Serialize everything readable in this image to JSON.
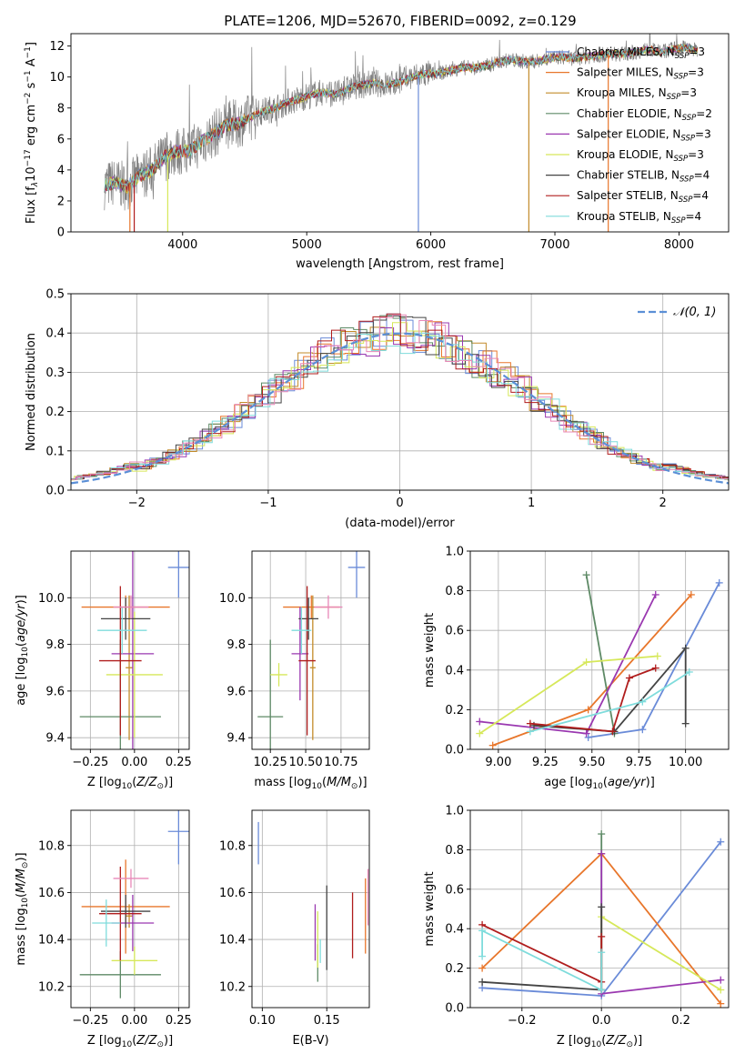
{
  "figure": {
    "title": "PLATE=1206, MJD=52670, FIBERID=0092, z=0.129"
  },
  "colors": {
    "chabrier_miles": "#6a8bd8",
    "salpeter_miles": "#e8762b",
    "kroupa_miles": "#c38b2a",
    "chabrier_elodie": "#5e8a66",
    "salpeter_elodie": "#9a38b0",
    "kroupa_elodie": "#d6e85a",
    "chabrier_stelib": "#444444",
    "salpeter_stelib": "#b01d1d",
    "kroupa_stelib": "#7fdcdc",
    "pink": "#e888b8",
    "data_gray": "#808080",
    "normal_dash": "#5b8fd6"
  },
  "chart_data": [
    {
      "id": "spectrum",
      "type": "line",
      "xlabel": "wavelength [Angstrom, rest frame]",
      "ylabel_main": "Flux [f",
      "ylabel_sub": "λ",
      "ylabel_mid": "10",
      "ylabel_sup1": "−17",
      "ylabel_tail": " erg cm",
      "ylabel_sup2": "−2",
      "ylabel_s": " s",
      "ylabel_sup3": "−1",
      "ylabel_end": " A",
      "ylabel_sup4": "−1",
      "ylabel_close": "]",
      "xlim": [
        3100,
        8400
      ],
      "ylim": [
        0,
        12.8
      ],
      "xticks": [
        4000,
        5000,
        6000,
        7000,
        8000
      ],
      "yticks": [
        0,
        2,
        4,
        6,
        8,
        10,
        12
      ],
      "legend_position": "top-right",
      "continuum": {
        "x": [
          3370,
          3450,
          3550,
          3650,
          3750,
          3850,
          3950,
          4050,
          4150,
          4250,
          4350,
          4450,
          4550,
          4650,
          4750,
          4850,
          4950,
          5050,
          5150,
          5250,
          5350,
          5450,
          5550,
          5650,
          5750,
          5850,
          5950,
          6050,
          6150,
          6250,
          6350,
          6450,
          6550,
          6650,
          6750,
          6850,
          6950,
          7050,
          7150,
          7250,
          7350,
          7450,
          7550,
          7650,
          7750,
          7850,
          7950,
          8050,
          8150
        ],
        "y": [
          3.0,
          3.2,
          2.9,
          3.6,
          4.0,
          4.8,
          5.2,
          5.2,
          5.8,
          6.3,
          6.9,
          7.0,
          7.4,
          7.8,
          8.0,
          8.4,
          8.6,
          8.9,
          9.0,
          8.9,
          9.3,
          9.5,
          9.6,
          9.5,
          9.7,
          10.0,
          10.2,
          10.2,
          10.4,
          10.6,
          10.6,
          10.7,
          11.0,
          11.1,
          11.0,
          11.0,
          11.2,
          11.3,
          11.2,
          11.3,
          11.4,
          11.5,
          11.5,
          11.6,
          11.8,
          11.6,
          11.8,
          11.9,
          11.7
        ]
      },
      "legend": [
        {
          "label": "Chabrier MILES, N",
          "sub": "SSP",
          "tail": "=3",
          "color_key": "chabrier_miles"
        },
        {
          "label": "Salpeter MILES, N",
          "sub": "SSP",
          "tail": "=3",
          "color_key": "salpeter_miles"
        },
        {
          "label": "Kroupa MILES, N",
          "sub": "SSP",
          "tail": "=3",
          "color_key": "kroupa_miles"
        },
        {
          "label": "Chabrier ELODIE, N",
          "sub": "SSP",
          "tail": "=2",
          "color_key": "chabrier_elodie"
        },
        {
          "label": "Salpeter ELODIE, N",
          "sub": "SSP",
          "tail": "=3",
          "color_key": "salpeter_elodie"
        },
        {
          "label": "Kroupa ELODIE, N",
          "sub": "SSP",
          "tail": "=3",
          "color_key": "kroupa_elodie"
        },
        {
          "label": "Chabrier STELIB, N",
          "sub": "SSP",
          "tail": "=4",
          "color_key": "chabrier_stelib"
        },
        {
          "label": "Salpeter STELIB, N",
          "sub": "SSP",
          "tail": "=4",
          "color_key": "salpeter_stelib"
        },
        {
          "label": "Kroupa STELIB, N",
          "sub": "SSP",
          "tail": "=4",
          "color_key": "kroupa_stelib"
        }
      ]
    },
    {
      "id": "residuals",
      "type": "line",
      "xlabel": "(data-model)/error",
      "ylabel": "Normed distribution",
      "xlim": [
        -2.5,
        2.5
      ],
      "ylim": [
        0,
        0.5
      ],
      "xticks": [
        -2,
        -1,
        0,
        1,
        2
      ],
      "xticklabels": [
        "−2",
        "−1",
        "0",
        "1",
        "2"
      ],
      "yticks": [
        0.0,
        0.1,
        0.2,
        0.3,
        0.4,
        0.5
      ],
      "yticklabels": [
        "0.0",
        "0.1",
        "0.2",
        "0.3",
        "0.4",
        "0.5"
      ],
      "legend_label": "𝒩(0, 1)",
      "legend_position": "top-right",
      "normal": {
        "mu": 0,
        "sigma": 1
      }
    },
    {
      "id": "age_vs_Z",
      "type": "scatter",
      "xlabel": "Z [log",
      "xlabel_sub": "10",
      "xlabel_tail": "(Z/Z",
      "xlabel_sub2": "⊙",
      "xlabel_end": ")]",
      "ylabel": "age  [log",
      "ylabel_sub": "10",
      "ylabel_tail": "(age/yr)]",
      "xlim": [
        -0.36,
        0.31
      ],
      "ylim": [
        9.35,
        10.2
      ],
      "xticks": [
        -0.25,
        0.0,
        0.25
      ],
      "xticklabels": [
        "−0.25",
        "0.00",
        "0.25"
      ],
      "yticks": [
        9.4,
        9.6,
        9.8,
        10.0
      ],
      "yticklabels": [
        "9.4",
        "9.6",
        "9.8",
        "10.0"
      ],
      "errorbars": [
        {
          "color_key": "chabrier_miles",
          "x": 0.25,
          "y": 10.13,
          "xerr": 0.06,
          "yerr": 0.13
        },
        {
          "color_key": "salpeter_miles",
          "x": -0.05,
          "y": 9.96,
          "xerr": 0.25,
          "yerr": 0.05
        },
        {
          "color_key": "kroupa_miles",
          "x": -0.03,
          "y": 9.7,
          "xerr": 0.02,
          "yerr": 0.31
        },
        {
          "color_key": "chabrier_elodie",
          "x": -0.08,
          "y": 9.49,
          "xerr": 0.23,
          "yerr": 0.33
        },
        {
          "color_key": "salpeter_elodie",
          "x": -0.01,
          "y": 9.76,
          "xerr": 0.12,
          "yerr": 0.44
        },
        {
          "color_key": "kroupa_elodie",
          "x": 0.0,
          "y": 9.67,
          "xerr": 0.16,
          "yerr": 0.27
        },
        {
          "color_key": "chabrier_stelib",
          "x": -0.05,
          "y": 9.91,
          "xerr": 0.14,
          "yerr": 0.09
        },
        {
          "color_key": "salpeter_stelib",
          "x": -0.08,
          "y": 9.73,
          "xerr": 0.12,
          "yerr": 0.32
        },
        {
          "color_key": "kroupa_stelib",
          "x": -0.07,
          "y": 9.86,
          "xerr": 0.14,
          "yerr": 0.1
        },
        {
          "color_key": "pink",
          "x": -0.02,
          "y": 9.96,
          "xerr": 0.1,
          "yerr": 0.05
        }
      ]
    },
    {
      "id": "age_vs_mass",
      "type": "scatter",
      "xlabel": "mass [log",
      "xlabel_sub": "10",
      "xlabel_tail": "(M/M",
      "xlabel_sub2": "⊙",
      "xlabel_end": ")]",
      "xlim": [
        10.12,
        10.95
      ],
      "ylim": [
        9.35,
        10.2
      ],
      "xticks": [
        10.25,
        10.5,
        10.75
      ],
      "xticklabels": [
        "10.25",
        "10.50",
        "10.75"
      ],
      "yticks": [
        9.4,
        9.6,
        9.8,
        10.0
      ],
      "yticklabels": [
        "9.4",
        "9.6",
        "9.8",
        "10.0"
      ],
      "errorbars": [
        {
          "color_key": "chabrier_miles",
          "x": 10.86,
          "y": 10.13,
          "xerr": 0.06,
          "yerr": 0.13
        },
        {
          "color_key": "salpeter_miles",
          "x": 10.54,
          "y": 9.96,
          "xerr": 0.2,
          "yerr": 0.05
        },
        {
          "color_key": "kroupa_miles",
          "x": 10.55,
          "y": 9.7,
          "xerr": 0.02,
          "yerr": 0.31
        },
        {
          "color_key": "chabrier_elodie",
          "x": 10.25,
          "y": 9.49,
          "xerr": 0.09,
          "yerr": 0.33
        },
        {
          "color_key": "salpeter_elodie",
          "x": 10.46,
          "y": 9.76,
          "xerr": 0.06,
          "yerr": 0.2
        },
        {
          "color_key": "kroupa_elodie",
          "x": 10.31,
          "y": 9.67,
          "xerr": 0.06,
          "yerr": 0.05
        },
        {
          "color_key": "chabrier_stelib",
          "x": 10.52,
          "y": 9.91,
          "xerr": 0.07,
          "yerr": 0.09
        },
        {
          "color_key": "salpeter_stelib",
          "x": 10.51,
          "y": 9.73,
          "xerr": 0.06,
          "yerr": 0.32
        },
        {
          "color_key": "kroupa_stelib",
          "x": 10.47,
          "y": 9.86,
          "xerr": 0.07,
          "yerr": 0.1
        },
        {
          "color_key": "pink",
          "x": 10.66,
          "y": 9.96,
          "xerr": 0.1,
          "yerr": 0.05
        }
      ]
    },
    {
      "id": "weight_vs_age",
      "type": "line",
      "xlabel": "age  [log",
      "xlabel_sub": "10",
      "xlabel_tail": "(age/yr)]",
      "ylabel": "mass weight",
      "xlim": [
        8.85,
        10.23
      ],
      "ylim": [
        0,
        1.0
      ],
      "xticks": [
        9.0,
        9.25,
        9.5,
        9.75,
        10.0
      ],
      "xticklabels": [
        "9.00",
        "9.25",
        "9.50",
        "9.75",
        "10.00"
      ],
      "yticks": [
        0.0,
        0.2,
        0.4,
        0.6,
        0.8,
        1.0
      ],
      "yticklabels": [
        "0.0",
        "0.2",
        "0.4",
        "0.6",
        "0.8",
        "1.0"
      ],
      "series": [
        {
          "color_key": "chabrier_miles",
          "x": [
            9.48,
            9.77,
            10.18
          ],
          "y": [
            0.06,
            0.1,
            0.84
          ]
        },
        {
          "color_key": "salpeter_miles",
          "x": [
            8.97,
            9.48,
            10.03
          ],
          "y": [
            0.02,
            0.2,
            0.78
          ]
        },
        {
          "color_key": "chabrier_elodie",
          "x": [
            9.47,
            9.62
          ],
          "y": [
            0.88,
            0.08
          ]
        },
        {
          "color_key": "salpeter_elodie",
          "x": [
            8.9,
            9.47,
            9.84
          ],
          "y": [
            0.14,
            0.08,
            0.78
          ]
        },
        {
          "color_key": "kroupa_elodie",
          "x": [
            8.9,
            9.47,
            9.85
          ],
          "y": [
            0.08,
            0.44,
            0.47
          ]
        },
        {
          "color_key": "chabrier_stelib",
          "x": [
            9.19,
            9.62,
            10.0,
            10.0
          ],
          "y": [
            0.12,
            0.09,
            0.51,
            0.13
          ]
        },
        {
          "color_key": "salpeter_stelib",
          "x": [
            9.17,
            9.61,
            9.7,
            9.84
          ],
          "y": [
            0.13,
            0.09,
            0.36,
            0.41
          ]
        },
        {
          "color_key": "kroupa_stelib",
          "x": [
            9.17,
            9.77,
            10.02
          ],
          "y": [
            0.09,
            0.24,
            0.39
          ]
        }
      ]
    },
    {
      "id": "mass_vs_Z",
      "type": "scatter",
      "xlabel": "Z [log",
      "xlabel_sub": "10",
      "xlabel_tail": "(Z/Z",
      "xlabel_sub2": "⊙",
      "xlabel_end": ")]",
      "ylabel": "mass [log",
      "ylabel_sub": "10",
      "ylabel_tail": "(M/M",
      "ylabel_sub2": "⊙",
      "ylabel_end": ")]",
      "xlim": [
        -0.36,
        0.31
      ],
      "ylim": [
        10.11,
        10.95
      ],
      "xticks": [
        -0.25,
        0.0,
        0.25
      ],
      "xticklabels": [
        "−0.25",
        "0.00",
        "0.25"
      ],
      "yticks": [
        10.2,
        10.4,
        10.6,
        10.8
      ],
      "yticklabels": [
        "10.2",
        "10.4",
        "10.6",
        "10.8"
      ],
      "errorbars": [
        {
          "color_key": "chabrier_miles",
          "x": 0.25,
          "y": 10.86,
          "xerr": 0.06,
          "yerr": 0.14
        },
        {
          "color_key": "salpeter_miles",
          "x": -0.05,
          "y": 10.54,
          "xerr": 0.25,
          "yerr": 0.2
        },
        {
          "color_key": "kroupa_miles",
          "x": -0.03,
          "y": 10.5,
          "xerr": 0.02,
          "yerr": 0.05
        },
        {
          "color_key": "chabrier_elodie",
          "x": -0.08,
          "y": 10.25,
          "xerr": 0.23,
          "yerr": 0.1
        },
        {
          "color_key": "salpeter_elodie",
          "x": -0.01,
          "y": 10.47,
          "xerr": 0.12,
          "yerr": 0.12
        },
        {
          "color_key": "kroupa_elodie",
          "x": 0.0,
          "y": 10.31,
          "xerr": 0.13,
          "yerr": 0.06
        },
        {
          "color_key": "chabrier_stelib",
          "x": -0.05,
          "y": 10.52,
          "xerr": 0.14,
          "yerr": 0.07
        },
        {
          "color_key": "salpeter_stelib",
          "x": -0.08,
          "y": 10.51,
          "xerr": 0.12,
          "yerr": 0.2
        },
        {
          "color_key": "kroupa_stelib",
          "x": -0.16,
          "y": 10.47,
          "xerr": 0.08,
          "yerr": 0.1
        },
        {
          "color_key": "pink",
          "x": -0.02,
          "y": 10.66,
          "xerr": 0.1,
          "yerr": 0.04
        }
      ]
    },
    {
      "id": "mass_vs_ebv",
      "type": "scatter",
      "xlabel": "E(B-V)",
      "xlim": [
        0.092,
        0.183
      ],
      "ylim": [
        10.11,
        10.95
      ],
      "xticks": [
        0.1,
        0.15
      ],
      "xticklabels": [
        "0.10",
        "0.15"
      ],
      "yticks": [
        10.2,
        10.4,
        10.6,
        10.8
      ],
      "yticklabels": [
        "10.2",
        "10.4",
        "10.6",
        "10.8"
      ],
      "errorbars": [
        {
          "color_key": "chabrier_miles",
          "x": 0.097,
          "y": 10.81,
          "xerr": 0,
          "yerr": 0.09
        },
        {
          "color_key": "salpeter_miles",
          "x": 0.18,
          "y": 10.5,
          "xerr": 0,
          "yerr": 0.16
        },
        {
          "color_key": "chabrier_elodie",
          "x": 0.143,
          "y": 10.3,
          "xerr": 0,
          "yerr": 0.08
        },
        {
          "color_key": "salpeter_elodie",
          "x": 0.141,
          "y": 10.43,
          "xerr": 0,
          "yerr": 0.12
        },
        {
          "color_key": "kroupa_elodie",
          "x": 0.143,
          "y": 10.4,
          "xerr": 0,
          "yerr": 0.12
        },
        {
          "color_key": "chabrier_stelib",
          "x": 0.15,
          "y": 10.45,
          "xerr": 0,
          "yerr": 0.18
        },
        {
          "color_key": "salpeter_stelib",
          "x": 0.17,
          "y": 10.46,
          "xerr": 0,
          "yerr": 0.14
        },
        {
          "color_key": "kroupa_stelib",
          "x": 0.145,
          "y": 10.35,
          "xerr": 0,
          "yerr": 0.05
        },
        {
          "color_key": "pink",
          "x": 0.182,
          "y": 10.58,
          "xerr": 0,
          "yerr": 0.12
        }
      ]
    },
    {
      "id": "weight_vs_Z",
      "type": "line",
      "xlabel": "Z [log",
      "xlabel_sub": "10",
      "xlabel_tail": "(Z/Z",
      "xlabel_sub2": "⊙",
      "xlabel_end": ")]",
      "ylabel": "mass weight",
      "xlim": [
        -0.33,
        0.32
      ],
      "ylim": [
        0,
        1.0
      ],
      "xticks": [
        -0.2,
        0.0,
        0.2
      ],
      "xticklabels": [
        "−0.2",
        "0.0",
        "0.2"
      ],
      "yticks": [
        0.0,
        0.2,
        0.4,
        0.6,
        0.8,
        1.0
      ],
      "yticklabels": [
        "0.0",
        "0.2",
        "0.4",
        "0.6",
        "0.8",
        "1.0"
      ],
      "series": [
        {
          "color_key": "chabrier_miles",
          "x": [
            -0.3,
            0.0,
            0.3
          ],
          "y": [
            0.1,
            0.06,
            0.84
          ]
        },
        {
          "color_key": "salpeter_miles",
          "x": [
            -0.3,
            0.0,
            0.3
          ],
          "y": [
            0.2,
            0.78,
            0.02
          ]
        },
        {
          "color_key": "chabrier_elodie",
          "x": [
            0.0,
            0.0
          ],
          "y": [
            0.88,
            0.09
          ]
        },
        {
          "color_key": "salpeter_elodie",
          "x": [
            0.0,
            0.0,
            0.3
          ],
          "y": [
            0.78,
            0.07,
            0.14
          ]
        },
        {
          "color_key": "kroupa_elodie",
          "x": [
            0.0,
            0.0,
            0.3
          ],
          "y": [
            0.09,
            0.46,
            0.09
          ]
        },
        {
          "color_key": "chabrier_stelib",
          "x": [
            -0.3,
            0.0,
            0.0
          ],
          "y": [
            0.13,
            0.09,
            0.51
          ]
        },
        {
          "color_key": "salpeter_stelib",
          "x": [
            -0.3,
            0.0,
            0.0
          ],
          "y": [
            0.42,
            0.13,
            0.36
          ]
        },
        {
          "color_key": "kroupa_stelib",
          "x": [
            -0.3,
            -0.3,
            0.0,
            0.0
          ],
          "y": [
            0.26,
            0.39,
            0.09,
            0.28
          ]
        }
      ]
    }
  ]
}
